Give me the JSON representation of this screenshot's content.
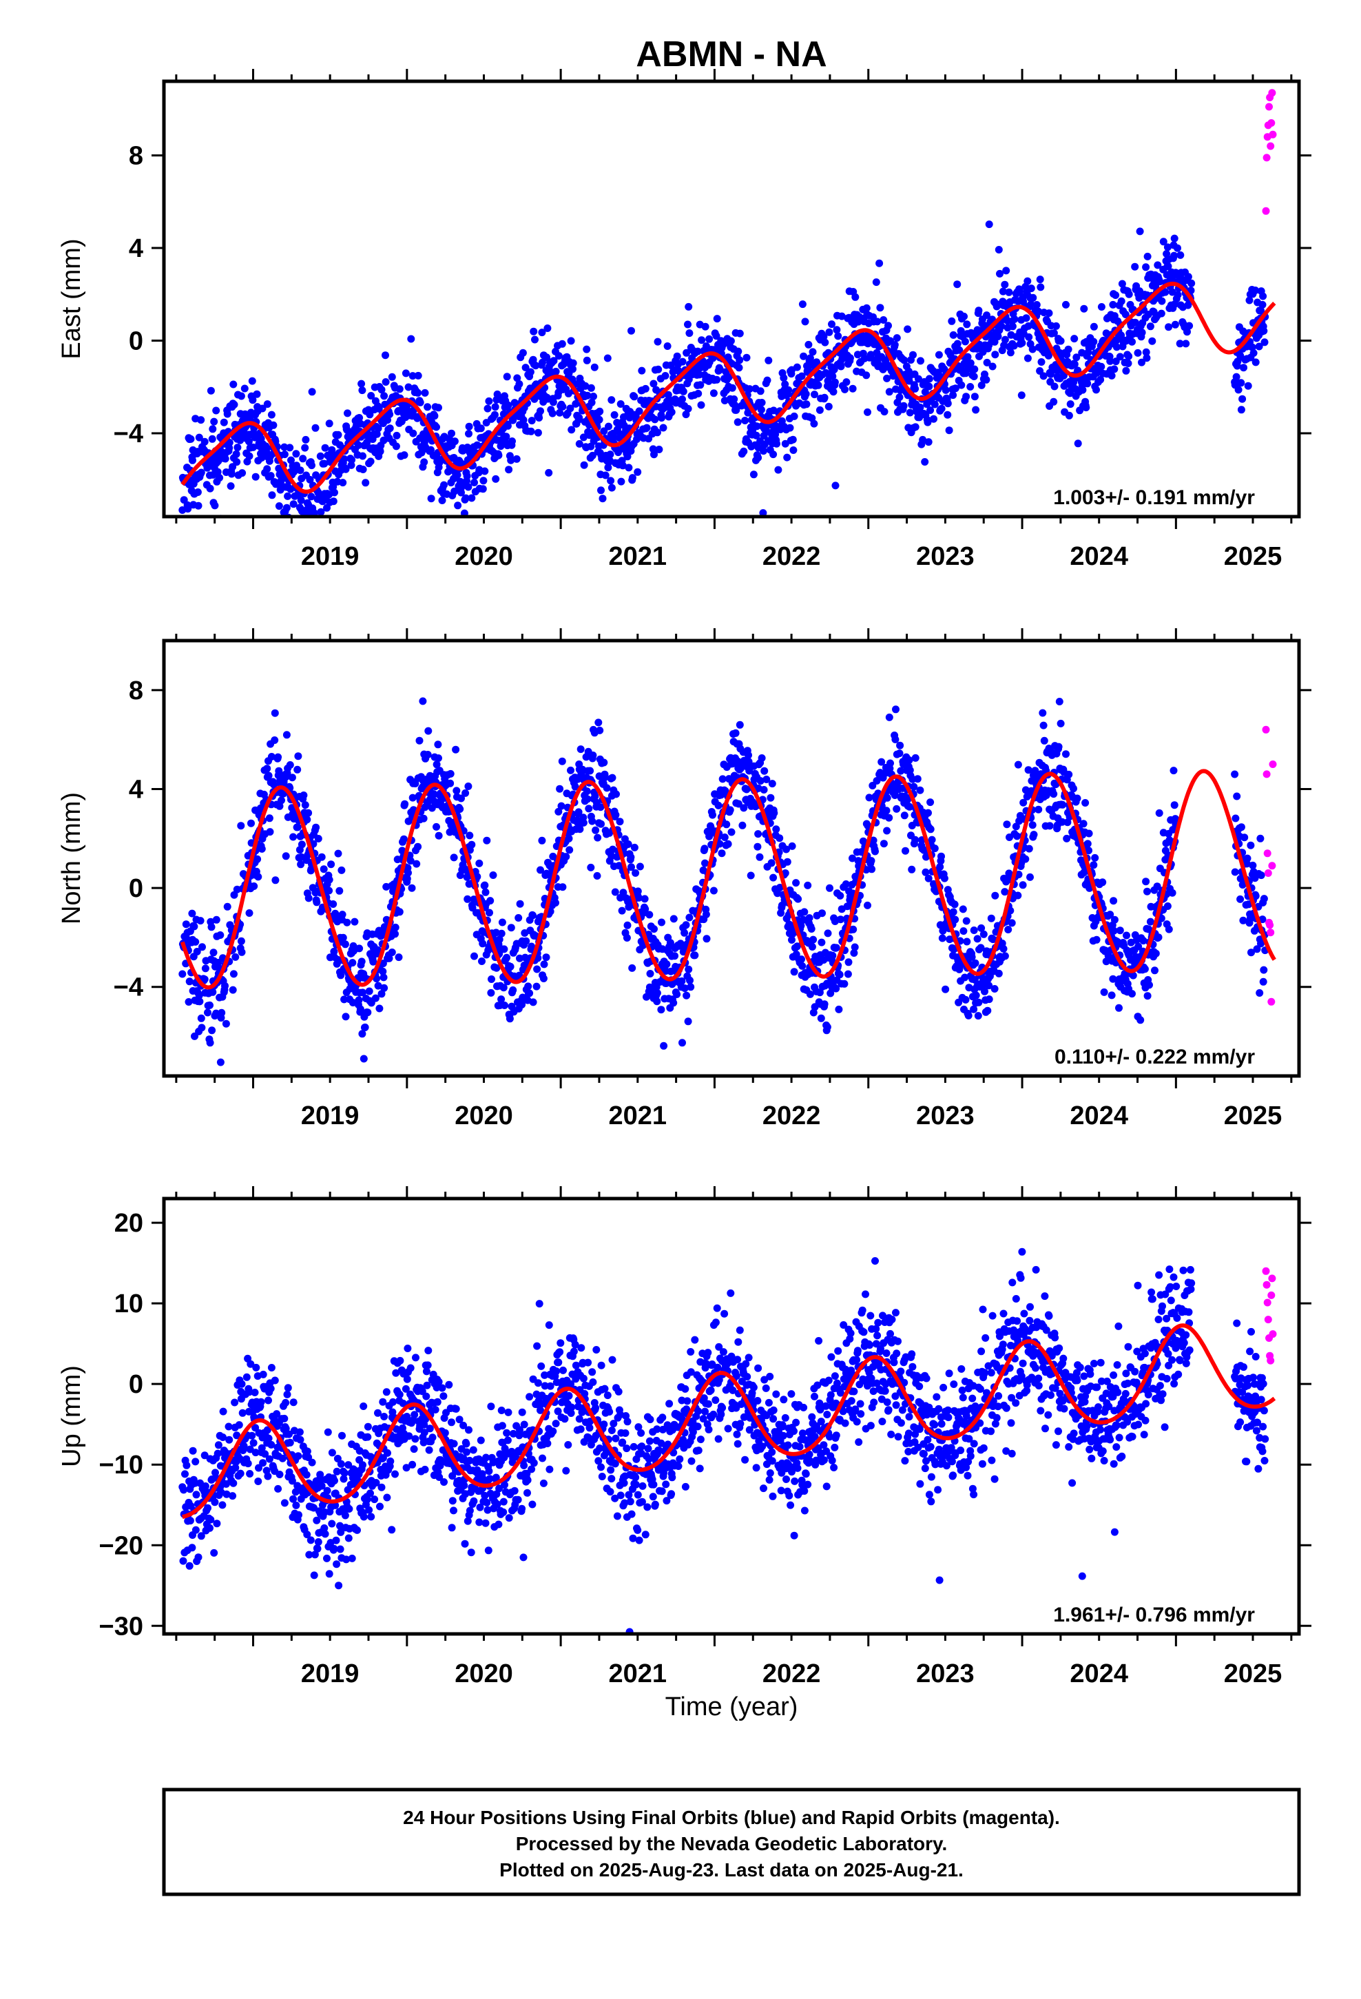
{
  "title": "ABMN - NA",
  "xlabel": "Time (year)",
  "footer": {
    "line1": "24 Hour Positions Using Final Orbits (blue) and Rapid Orbits (magenta).",
    "line2": "Processed by the Nevada Geodetic Laboratory.",
    "line3": "Plotted on 2025-Aug-23. Last data on 2025-Aug-21."
  },
  "colors": {
    "final": "#0000ff",
    "rapid": "#ff00ff",
    "model": "#ff0000",
    "frame": "#000000"
  },
  "x_tick_labels": [
    "2019",
    "2020",
    "2021",
    "2022",
    "2023",
    "2024",
    "2025"
  ],
  "chart_data": [
    {
      "type": "scatter",
      "name": "east",
      "ylabel": "East (mm)",
      "velocity_label": "1.003+/- 0.191 mm/yr",
      "xlim": [
        2018.42,
        2025.8
      ],
      "ylim": [
        -7.6,
        11.2
      ],
      "yticks": [
        -4,
        0,
        4,
        8
      ],
      "series": [
        {
          "role": "final",
          "x_range": [
            2018.54,
            2025.58
          ],
          "seed": 11,
          "trend": 1.003,
          "offset": -2.3,
          "annual_amp": 1.55,
          "annual_phase": 2.2,
          "semi_amp": 0.35,
          "semi_phase": 0.9,
          "noise": 0.95
        },
        {
          "role": "rapid",
          "x_range": [
            2025.58,
            2025.63
          ],
          "points": [
            [
              2025.585,
              5.6
            ],
            [
              2025.59,
              7.9
            ],
            [
              2025.595,
              8.8
            ],
            [
              2025.6,
              9.3
            ],
            [
              2025.605,
              10.1
            ],
            [
              2025.61,
              10.5
            ],
            [
              2025.615,
              8.4
            ],
            [
              2025.62,
              9.4
            ],
            [
              2025.625,
              10.7
            ],
            [
              2025.63,
              8.9
            ]
          ]
        }
      ],
      "model": {
        "x_range": [
          2018.54,
          2025.64
        ],
        "trend": 1.003,
        "offset": -2.1,
        "annual_amp": 1.55,
        "annual_phase": 2.2,
        "semi_amp": 0.35,
        "semi_phase": 0.9
      }
    },
    {
      "type": "scatter",
      "name": "north",
      "ylabel": "North (mm)",
      "velocity_label": "0.110+/- 0.222 mm/yr",
      "xlim": [
        2018.42,
        2025.8
      ],
      "ylim": [
        -7.6,
        10.0
      ],
      "yticks": [
        -4,
        0,
        4,
        8
      ],
      "series": [
        {
          "role": "final",
          "x_range": [
            2018.54,
            2025.58
          ],
          "seed": 23,
          "trend": 0.11,
          "offset": 0.3,
          "annual_amp": 4.0,
          "annual_phase": 0.35,
          "semi_amp": 0.2,
          "semi_phase": 0.4,
          "noise": 1.0
        },
        {
          "role": "rapid",
          "x_range": [
            2025.58,
            2025.63
          ],
          "points": [
            [
              2025.585,
              6.4
            ],
            [
              2025.59,
              4.6
            ],
            [
              2025.595,
              1.4
            ],
            [
              2025.6,
              0.6
            ],
            [
              2025.605,
              -1.4
            ],
            [
              2025.61,
              -1.5
            ],
            [
              2025.615,
              -1.8
            ],
            [
              2025.62,
              -4.6
            ],
            [
              2025.625,
              0.9
            ],
            [
              2025.63,
              5.0
            ]
          ]
        }
      ],
      "model": {
        "x_range": [
          2018.54,
          2025.64
        ],
        "trend": 0.11,
        "offset": 0.3,
        "annual_amp": 4.0,
        "annual_phase": 0.35,
        "semi_amp": 0.2,
        "semi_phase": 0.4
      }
    },
    {
      "type": "scatter",
      "name": "up",
      "ylabel": "Up (mm)",
      "velocity_label": "1.961+/- 0.796 mm/yr",
      "xlim": [
        2018.42,
        2025.8
      ],
      "ylim": [
        -31,
        23
      ],
      "yticks": [
        -30,
        -20,
        -10,
        0,
        10,
        20
      ],
      "series": [
        {
          "role": "final",
          "x_range": [
            2018.54,
            2025.58
          ],
          "seed": 37,
          "trend": 1.961,
          "offset": -4.8,
          "annual_amp": 5.5,
          "annual_phase": 1.35,
          "semi_amp": 0.6,
          "semi_phase": 1.0,
          "noise": 3.6
        },
        {
          "role": "rapid",
          "x_range": [
            2025.58,
            2025.63
          ],
          "points": [
            [
              2025.585,
              14.0
            ],
            [
              2025.59,
              12.3
            ],
            [
              2025.595,
              10.1
            ],
            [
              2025.6,
              8.0
            ],
            [
              2025.605,
              5.7
            ],
            [
              2025.61,
              3.5
            ],
            [
              2025.615,
              2.9
            ],
            [
              2025.62,
              11.0
            ],
            [
              2025.625,
              13.1
            ],
            [
              2025.63,
              6.2
            ]
          ]
        }
      ],
      "model": {
        "x_range": [
          2018.54,
          2025.64
        ],
        "trend": 1.961,
        "offset": -4.8,
        "annual_amp": 5.5,
        "annual_phase": 1.35,
        "semi_amp": 0.6,
        "semi_phase": 1.0
      }
    }
  ]
}
